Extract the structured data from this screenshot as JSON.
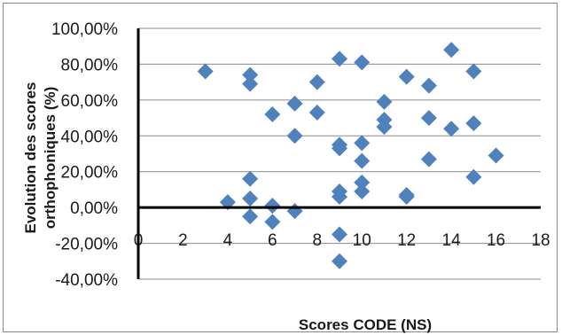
{
  "chart_data": {
    "type": "scatter",
    "xlabel": "Scores CODE (NS)",
    "ylabel": "Evolution des scores orthophoniques (%)",
    "xlim": [
      0,
      18
    ],
    "ylim": [
      -0.4,
      1.0
    ],
    "x_ticks": [
      "0",
      "2",
      "4",
      "6",
      "8",
      "10",
      "12",
      "14",
      "16",
      "18"
    ],
    "y_ticks": [
      "-40,00%",
      "-20,00%",
      "0,00%",
      "20,00%",
      "40,00%",
      "60,00%",
      "80,00%",
      "100,00%"
    ],
    "grid": "horizontal",
    "legend": "none",
    "marker": "diamond",
    "marker_color": "#4F81BD",
    "points": [
      {
        "x": 3,
        "y": 0.76
      },
      {
        "x": 4,
        "y": 0.03
      },
      {
        "x": 5,
        "y": 0.74
      },
      {
        "x": 5,
        "y": 0.69
      },
      {
        "x": 5,
        "y": 0.16
      },
      {
        "x": 5,
        "y": 0.05
      },
      {
        "x": 5,
        "y": -0.05
      },
      {
        "x": 6,
        "y": 0.52
      },
      {
        "x": 6,
        "y": 0.01
      },
      {
        "x": 6,
        "y": -0.08
      },
      {
        "x": 7,
        "y": 0.58
      },
      {
        "x": 7,
        "y": 0.4
      },
      {
        "x": 7,
        "y": -0.02
      },
      {
        "x": 8,
        "y": 0.7
      },
      {
        "x": 8,
        "y": 0.53
      },
      {
        "x": 9,
        "y": 0.83
      },
      {
        "x": 9,
        "y": 0.35
      },
      {
        "x": 9,
        "y": 0.33
      },
      {
        "x": 9,
        "y": 0.09
      },
      {
        "x": 9,
        "y": 0.06
      },
      {
        "x": 9,
        "y": -0.15
      },
      {
        "x": 9,
        "y": -0.3
      },
      {
        "x": 10,
        "y": 0.81
      },
      {
        "x": 10,
        "y": 0.36
      },
      {
        "x": 10,
        "y": 0.26
      },
      {
        "x": 10,
        "y": 0.14
      },
      {
        "x": 10,
        "y": 0.09
      },
      {
        "x": 11,
        "y": 0.59
      },
      {
        "x": 11,
        "y": 0.49
      },
      {
        "x": 11,
        "y": 0.45
      },
      {
        "x": 12,
        "y": 0.73
      },
      {
        "x": 12,
        "y": 0.07
      },
      {
        "x": 12,
        "y": 0.06
      },
      {
        "x": 13,
        "y": 0.68
      },
      {
        "x": 13,
        "y": 0.5
      },
      {
        "x": 13,
        "y": 0.27
      },
      {
        "x": 14,
        "y": 0.88
      },
      {
        "x": 14,
        "y": 0.44
      },
      {
        "x": 15,
        "y": 0.76
      },
      {
        "x": 15,
        "y": 0.47
      },
      {
        "x": 15,
        "y": 0.17
      },
      {
        "x": 16,
        "y": 0.29
      }
    ]
  }
}
